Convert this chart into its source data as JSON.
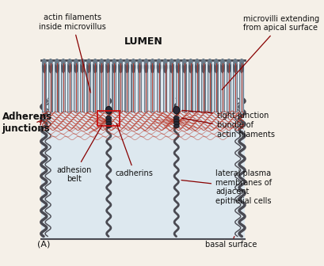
{
  "bg_color": "#f5f0e8",
  "cell_fill": "#cdd8e0",
  "cell_fill2": "#dde8ef",
  "cell_border": "#4a4a52",
  "mv_outer": "#6a7a88",
  "mv_inner": "#8a9aaa",
  "mv_tip": "#525a68",
  "mv_light": "#b8c8d4",
  "actin_color": "#b83020",
  "junction_dark": "#2a2a38",
  "label_color": "#111111",
  "arrow_color": "#880000",
  "lumen_label": "LUMEN",
  "labels": {
    "actin_filaments": "actin filaments\ninside microvillus",
    "microvilli": "microvilli extending\nfrom apical surface",
    "adherens": "Adherens\njunctions",
    "tight_junction": "tight junction",
    "bundle_actin": "bundle of\nactin filaments",
    "adhesion_belt": "adhesion\nbelt",
    "cadherins": "cadherins",
    "lateral_plasma": "lateral plasma\nmembranes of\nadjacent\nepithelial cells",
    "basal_surface": "basal surface",
    "panel_label": "(A)"
  },
  "figsize": [
    4.1,
    3.36
  ],
  "dpi": 100
}
